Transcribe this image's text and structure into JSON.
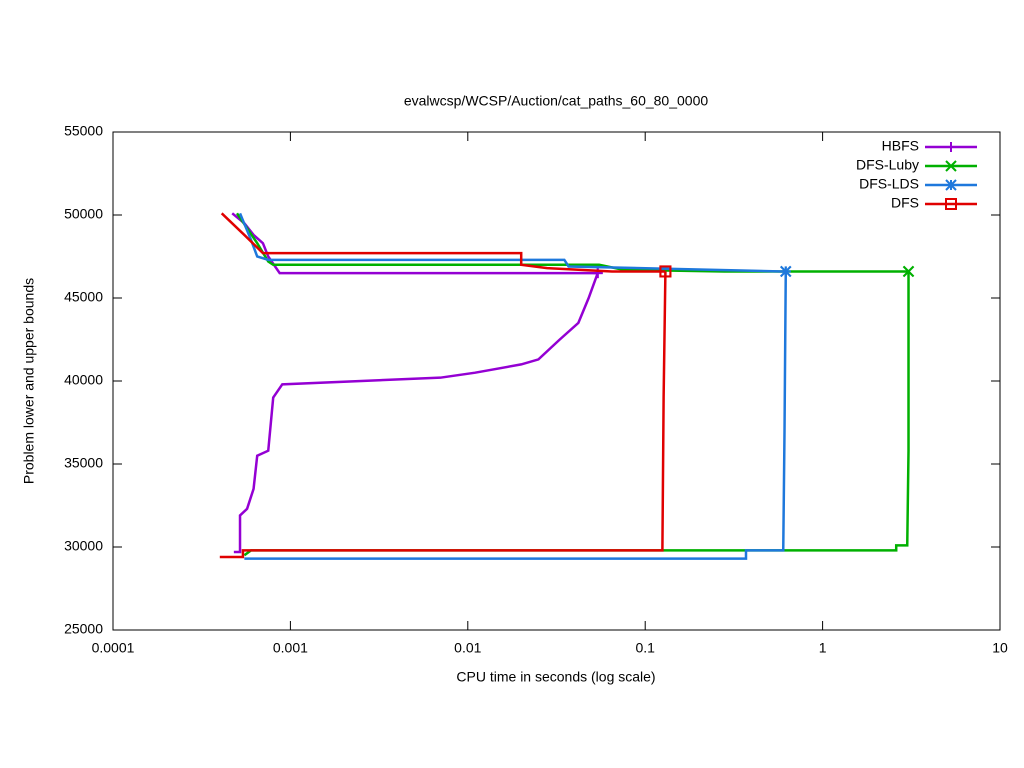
{
  "chart_data": {
    "type": "line",
    "title": "evalwcsp/WCSP/Auction/cat_paths_60_80_0000",
    "x_label": "CPU time in seconds (log scale)",
    "y_label": "Problem lower and upper bounds",
    "xscale": "log",
    "xlim": [
      0.0001,
      10
    ],
    "xticks": [
      0.0001,
      0.001,
      0.01,
      0.1,
      1,
      10
    ],
    "ylim": [
      25000,
      55000
    ],
    "yticks": [
      25000,
      30000,
      35000,
      40000,
      45000,
      50000,
      55000
    ],
    "legend": "top-right",
    "series": [
      {
        "name": "HBFS",
        "color": "#9400d3",
        "marker": "plus",
        "x": [
          0.00047,
          0.00055,
          0.00062,
          0.0007,
          0.00075,
          0.00087,
          0.054,
          null,
          0.00048,
          0.00052,
          0.00052,
          0.00057,
          0.00062,
          0.00065,
          0.00075,
          0.0008,
          0.0009,
          0.007,
          0.011,
          0.02,
          0.025,
          0.033,
          0.042,
          0.048,
          0.054
        ],
        "values": [
          50100,
          49500,
          48800,
          48300,
          47500,
          46500,
          46500,
          null,
          29700,
          29700,
          31900,
          32300,
          33500,
          35500,
          35800,
          39000,
          39800,
          40200,
          40500,
          41000,
          41300,
          42500,
          43500,
          45000,
          46500
        ]
      },
      {
        "name": "DFS-Luby",
        "color": "#00b000",
        "marker": "cross",
        "x": [
          0.0005,
          0.00065,
          0.00075,
          0.0008,
          0.055,
          0.075,
          0.28,
          3.05,
          null,
          0.00055,
          0.0006,
          0.13,
          2.6,
          2.6,
          3.0,
          3.05,
          3.05
        ],
        "values": [
          50100,
          48300,
          47200,
          47000,
          47000,
          46700,
          46600,
          46600,
          null,
          29500,
          29800,
          29800,
          29800,
          30100,
          30100,
          35800,
          46600
        ]
      },
      {
        "name": "DFS-LDS",
        "color": "#1e78dc",
        "marker": "star",
        "x": [
          0.00052,
          0.0006,
          0.00065,
          0.00075,
          0.035,
          0.037,
          0.6,
          0.62,
          null,
          0.00055,
          0.37,
          0.37,
          0.6,
          0.61,
          0.62
        ],
        "values": [
          50100,
          48500,
          47500,
          47300,
          47300,
          46900,
          46600,
          46600,
          null,
          29300,
          29300,
          29800,
          29800,
          37000,
          46600
        ]
      },
      {
        "name": "DFS",
        "color": "#e00000",
        "marker": "square",
        "x": [
          0.00041,
          0.00055,
          0.0007,
          0.02,
          0.02,
          0.028,
          0.065,
          0.13,
          null,
          0.0004,
          0.00054,
          0.00054,
          0.125,
          0.127,
          0.13
        ],
        "values": [
          50100,
          48800,
          47700,
          47700,
          47000,
          46800,
          46600,
          46600,
          null,
          29400,
          29400,
          29800,
          29800,
          39000,
          46600
        ]
      }
    ]
  }
}
